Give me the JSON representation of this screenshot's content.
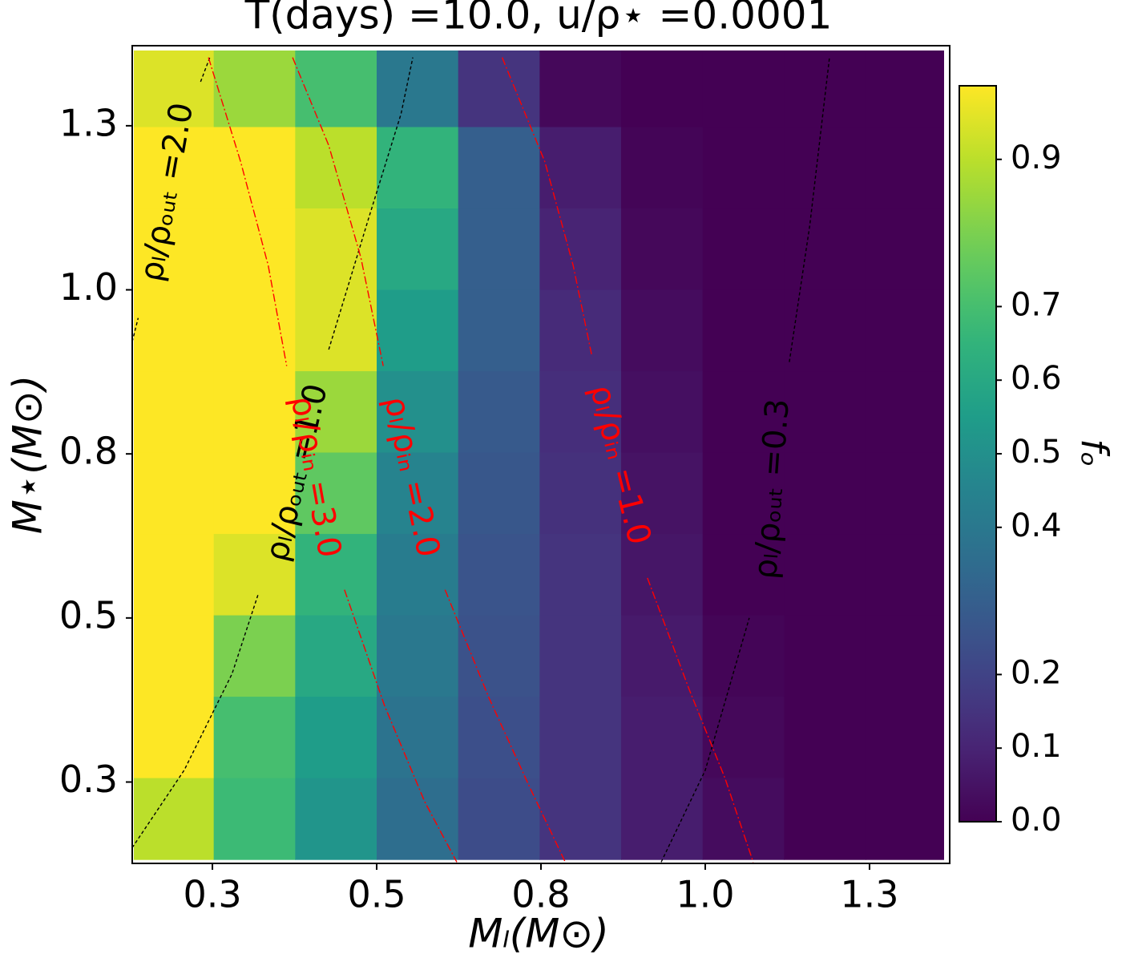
{
  "chart_data": {
    "type": "heatmap",
    "title": "T(days) =10.0,  u/ρ⋆ =0.0001",
    "x_label": "Mₗ(M⊙)",
    "y_label": "M⋆(M⊙)",
    "colorbar_label": "fₒ",
    "colormap": "viridis",
    "xlim": [
      0.128,
      1.372
    ],
    "ylim": [
      0.126,
      1.372
    ],
    "xticks": [
      {
        "value": 0.25,
        "label": "0.3"
      },
      0.5,
      {
        "value": 0.75,
        "label": "0.8"
      },
      {
        "value": 1.0,
        "label": "1.0"
      },
      {
        "value": 1.25,
        "label": "1.3"
      }
    ],
    "yticks": [
      {
        "value": 0.25,
        "label": "0.3"
      },
      0.5,
      {
        "value": 0.75,
        "label": "0.8"
      },
      {
        "value": 1.0,
        "label": "1.0"
      },
      {
        "value": 1.25,
        "label": "1.3"
      }
    ],
    "clim": [
      0,
      1
    ],
    "cticks": [
      {
        "value": 0,
        "label": "0.0"
      },
      0.1,
      0.2,
      0.4,
      0.5,
      0.6,
      0.7,
      0.9
    ],
    "x": [
      0.19,
      0.314,
      0.438,
      0.562,
      0.686,
      0.81,
      0.934,
      1.058,
      1.182,
      1.306
    ],
    "y": [
      1.31,
      1.186,
      1.062,
      0.938,
      0.814,
      0.69,
      0.566,
      0.442,
      0.318,
      0.194
    ],
    "z": [
      [
        0.95,
        0.85,
        0.7,
        0.4,
        0.15,
        0.02,
        0,
        0,
        0,
        0
      ],
      [
        1,
        1,
        0.9,
        0.65,
        0.3,
        0.08,
        0.01,
        0,
        0,
        0
      ],
      [
        1,
        1,
        0.95,
        0.6,
        0.3,
        0.1,
        0.02,
        0,
        0,
        0
      ],
      [
        1,
        1,
        0.95,
        0.55,
        0.3,
        0.12,
        0.03,
        0,
        0,
        0
      ],
      [
        1,
        1,
        0.85,
        0.5,
        0.28,
        0.13,
        0.04,
        0,
        0,
        0
      ],
      [
        1,
        1,
        0.75,
        0.45,
        0.27,
        0.14,
        0.05,
        0,
        0,
        0
      ],
      [
        1,
        0.95,
        0.65,
        0.42,
        0.26,
        0.15,
        0.06,
        0,
        0,
        0
      ],
      [
        1,
        0.8,
        0.6,
        0.4,
        0.25,
        0.15,
        0.07,
        0.01,
        0,
        0
      ],
      [
        1,
        0.7,
        0.55,
        0.38,
        0.24,
        0.15,
        0.08,
        0.02,
        0,
        0
      ],
      [
        0.9,
        0.68,
        0.52,
        0.36,
        0.23,
        0.15,
        0.08,
        0.03,
        0,
        0
      ]
    ],
    "contours": [
      {
        "name": "ρₗ/ρₒᵤₜ =2.0",
        "color": "#000000",
        "dash": "dashed",
        "x": [
          0.128,
          0.137,
          null,
          0.232,
          0.246
        ],
        "y": [
          0.921,
          0.957,
          null,
          1.317,
          1.354
        ]
      },
      {
        "name": "ρₗ/ρₒᵤₜ =1.0",
        "color": "#000000",
        "dash": "dashed",
        "x": [
          0.128,
          0.207,
          0.28,
          0.32,
          null,
          0.427,
          0.488,
          0.537,
          0.555
        ],
        "y": [
          0.15,
          0.268,
          0.415,
          0.537,
          null,
          0.909,
          1.11,
          1.268,
          1.354
        ]
      },
      {
        "name": "ρₗ/ρₒᵤₜ =0.3",
        "color": "#000000",
        "dash": "dashed",
        "x": [
          0.933,
          1.0,
          1.067,
          null,
          1.128,
          1.159,
          1.189
        ],
        "y": [
          0.128,
          0.268,
          0.5,
          null,
          0.89,
          1.098,
          1.354
        ]
      },
      {
        "name": "ρₗ/ρᵢₙ =3.0",
        "color": "#ff0000",
        "dash": "dashdot",
        "x": [
          0.244,
          0.293,
          0.335,
          0.363,
          null,
          0.451,
          0.512,
          0.573,
          0.622
        ],
        "y": [
          1.354,
          1.195,
          1.037,
          0.884,
          null,
          0.543,
          0.366,
          0.22,
          0.128
        ]
      },
      {
        "name": "ρₗ/ρᵢₙ =2.0",
        "color": "#ff0000",
        "dash": "dashdot",
        "x": [
          0.372,
          0.427,
          0.476,
          0.51,
          null,
          0.604,
          0.671,
          0.732,
          0.787
        ],
        "y": [
          1.354,
          1.22,
          1.049,
          0.884,
          null,
          0.543,
          0.378,
          0.244,
          0.128
        ]
      },
      {
        "name": "ρₗ/ρᵢₙ =1.0",
        "color": "#ff0000",
        "dash": "dashdot",
        "x": [
          0.691,
          0.756,
          0.799,
          0.827,
          null,
          0.912,
          0.976,
          1.03,
          1.073
        ],
        "y": [
          1.354,
          1.195,
          1.037,
          0.902,
          null,
          0.561,
          0.39,
          0.256,
          0.128
        ]
      }
    ]
  }
}
